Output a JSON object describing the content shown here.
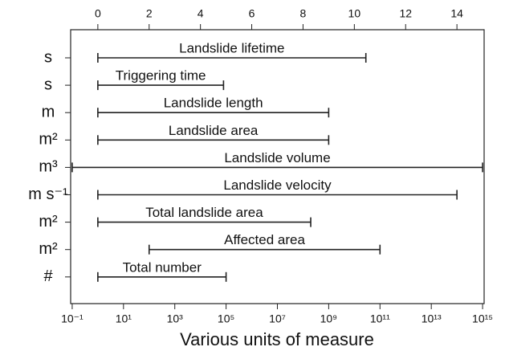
{
  "chart_data": {
    "type": "range-bar",
    "xlabel": "Various units of measure",
    "categories": [
      "Landslide lifetime",
      "Triggering time",
      "Landslide length",
      "Landslide area",
      "Landslide volume",
      "Landslide velocity",
      "Total landslide area",
      "Affected area",
      "Total number"
    ],
    "units": [
      "s",
      "s",
      "m",
      "m²",
      "m³",
      "m s⁻¹",
      "m²",
      "m²",
      "#"
    ],
    "starts": [
      0,
      0,
      0,
      0,
      -1,
      0,
      0,
      2,
      0
    ],
    "ends": [
      10.45,
      4.9,
      9,
      9,
      15,
      14,
      8.3,
      11,
      5
    ],
    "color": "#222",
    "xlim": [
      -1.06,
      15.06
    ],
    "xticks": [
      {
        "value": -1,
        "label": "10⁻¹"
      },
      {
        "value": 1,
        "label": "10¹"
      },
      {
        "value": 3,
        "label": "10³"
      },
      {
        "value": 5,
        "label": "10⁵"
      },
      {
        "value": 7,
        "label": "10⁷"
      },
      {
        "value": 9,
        "label": "10⁹"
      },
      {
        "value": 11,
        "label": "10¹¹"
      },
      {
        "value": 13,
        "label": "10¹³"
      },
      {
        "value": 15,
        "label": "10¹⁵"
      }
    ],
    "x2ticks": [
      0,
      2,
      4,
      6,
      8,
      10,
      12,
      14
    ]
  }
}
